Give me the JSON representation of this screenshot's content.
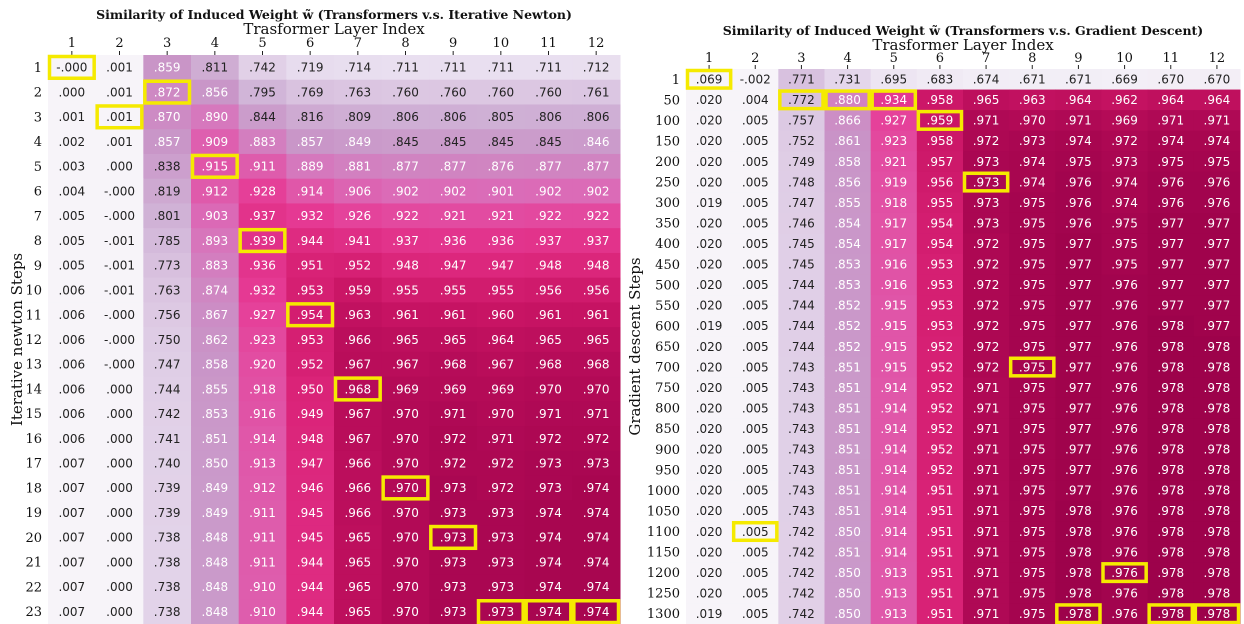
{
  "chart_data": [
    {
      "type": "heatmap",
      "title": "Similarity of Induced Weight w̃ (Transformers v.s. Iterative Newton)",
      "xlabel": "Trasformer Layer Index",
      "ylabel": "Iterative newton Steps",
      "x": [
        "1",
        "2",
        "3",
        "4",
        "5",
        "6",
        "7",
        "8",
        "9",
        "10",
        "11",
        "12"
      ],
      "y": [
        "1",
        "2",
        "3",
        "4",
        "5",
        "6",
        "7",
        "8",
        "9",
        "10",
        "11",
        "12",
        "13",
        "14",
        "15",
        "16",
        "17",
        "18",
        "19",
        "20",
        "21",
        "22",
        "23"
      ],
      "values": [
        [
          "-.000",
          ".001",
          ".859",
          ".811",
          ".742",
          ".719",
          ".714",
          ".711",
          ".711",
          ".711",
          ".711",
          ".712"
        ],
        [
          ".000",
          ".001",
          ".872",
          ".856",
          ".795",
          ".769",
          ".763",
          ".760",
          ".760",
          ".760",
          ".760",
          ".761"
        ],
        [
          ".001",
          ".001",
          ".870",
          ".890",
          ".844",
          ".816",
          ".809",
          ".806",
          ".806",
          ".805",
          ".806",
          ".806"
        ],
        [
          ".002",
          ".001",
          ".857",
          ".909",
          ".883",
          ".857",
          ".849",
          ".845",
          ".845",
          ".845",
          ".845",
          ".846"
        ],
        [
          ".003",
          ".000",
          ".838",
          ".915",
          ".911",
          ".889",
          ".881",
          ".877",
          ".877",
          ".876",
          ".877",
          ".877"
        ],
        [
          ".004",
          "-.000",
          ".819",
          ".912",
          ".928",
          ".914",
          ".906",
          ".902",
          ".902",
          ".901",
          ".902",
          ".902"
        ],
        [
          ".005",
          "-.000",
          ".801",
          ".903",
          ".937",
          ".932",
          ".926",
          ".922",
          ".921",
          ".921",
          ".922",
          ".922"
        ],
        [
          ".005",
          "-.001",
          ".785",
          ".893",
          ".939",
          ".944",
          ".941",
          ".937",
          ".936",
          ".936",
          ".937",
          ".937"
        ],
        [
          ".005",
          "-.001",
          ".773",
          ".883",
          ".936",
          ".951",
          ".952",
          ".948",
          ".947",
          ".947",
          ".948",
          ".948"
        ],
        [
          ".006",
          "-.001",
          ".763",
          ".874",
          ".932",
          ".953",
          ".959",
          ".955",
          ".955",
          ".955",
          ".956",
          ".956"
        ],
        [
          ".006",
          "-.000",
          ".756",
          ".867",
          ".927",
          ".954",
          ".963",
          ".961",
          ".961",
          ".960",
          ".961",
          ".961"
        ],
        [
          ".006",
          "-.000",
          ".750",
          ".862",
          ".923",
          ".953",
          ".966",
          ".965",
          ".965",
          ".964",
          ".965",
          ".965"
        ],
        [
          ".006",
          "-.000",
          ".747",
          ".858",
          ".920",
          ".952",
          ".967",
          ".967",
          ".968",
          ".967",
          ".968",
          ".968"
        ],
        [
          ".006",
          ".000",
          ".744",
          ".855",
          ".918",
          ".950",
          ".968",
          ".969",
          ".969",
          ".969",
          ".970",
          ".970"
        ],
        [
          ".006",
          ".000",
          ".742",
          ".853",
          ".916",
          ".949",
          ".967",
          ".970",
          ".971",
          ".970",
          ".971",
          ".971"
        ],
        [
          ".006",
          ".000",
          ".741",
          ".851",
          ".914",
          ".948",
          ".967",
          ".970",
          ".972",
          ".971",
          ".972",
          ".972"
        ],
        [
          ".007",
          ".000",
          ".740",
          ".850",
          ".913",
          ".947",
          ".966",
          ".970",
          ".972",
          ".972",
          ".973",
          ".973"
        ],
        [
          ".007",
          ".000",
          ".739",
          ".849",
          ".912",
          ".946",
          ".966",
          ".970",
          ".973",
          ".972",
          ".973",
          ".974"
        ],
        [
          ".007",
          ".000",
          ".739",
          ".849",
          ".911",
          ".945",
          ".966",
          ".970",
          ".973",
          ".973",
          ".974",
          ".974"
        ],
        [
          ".007",
          ".000",
          ".738",
          ".848",
          ".911",
          ".945",
          ".965",
          ".970",
          ".973",
          ".973",
          ".974",
          ".974"
        ],
        [
          ".007",
          ".000",
          ".738",
          ".848",
          ".911",
          ".944",
          ".965",
          ".970",
          ".973",
          ".973",
          ".974",
          ".974"
        ],
        [
          ".007",
          ".000",
          ".738",
          ".848",
          ".910",
          ".944",
          ".965",
          ".970",
          ".973",
          ".973",
          ".974",
          ".974"
        ],
        [
          ".007",
          ".000",
          ".738",
          ".848",
          ".910",
          ".944",
          ".965",
          ".970",
          ".973",
          ".973",
          ".974",
          ".974"
        ]
      ],
      "highlighted": [
        [
          0,
          0
        ],
        [
          1,
          2
        ],
        [
          2,
          1
        ],
        [
          3,
          4
        ],
        [
          4,
          7
        ],
        [
          5,
          10
        ],
        [
          6,
          13
        ],
        [
          7,
          17
        ],
        [
          8,
          19
        ],
        [
          9,
          22
        ],
        [
          10,
          22
        ],
        [
          11,
          22
        ]
      ],
      "highlight_color": "#f5ea00"
    },
    {
      "type": "heatmap",
      "title": "Similarity of Induced Weight w̃ (Transformers v.s. Gradient Descent)",
      "xlabel": "Trasformer Layer Index",
      "ylabel": "Gradient descent Steps",
      "x": [
        "1",
        "2",
        "3",
        "4",
        "5",
        "6",
        "7",
        "8",
        "9",
        "10",
        "11",
        "12"
      ],
      "y": [
        "1",
        "50",
        "100",
        "150",
        "200",
        "250",
        "300",
        "350",
        "400",
        "450",
        "500",
        "550",
        "600",
        "650",
        "700",
        "750",
        "800",
        "850",
        "900",
        "950",
        "1000",
        "1050",
        "1100",
        "1150",
        "1200",
        "1250",
        "1300"
      ],
      "values": [
        [
          ".069",
          "-.002",
          ".771",
          ".731",
          ".695",
          ".683",
          ".674",
          ".671",
          ".671",
          ".669",
          ".670",
          ".670"
        ],
        [
          ".020",
          ".004",
          ".772",
          ".880",
          ".934",
          ".958",
          ".965",
          ".963",
          ".964",
          ".962",
          ".964",
          ".964"
        ],
        [
          ".020",
          ".005",
          ".757",
          ".866",
          ".927",
          ".959",
          ".971",
          ".970",
          ".971",
          ".969",
          ".971",
          ".971"
        ],
        [
          ".020",
          ".005",
          ".752",
          ".861",
          ".923",
          ".958",
          ".972",
          ".973",
          ".974",
          ".972",
          ".974",
          ".974"
        ],
        [
          ".020",
          ".005",
          ".749",
          ".858",
          ".921",
          ".957",
          ".973",
          ".974",
          ".975",
          ".973",
          ".975",
          ".975"
        ],
        [
          ".020",
          ".005",
          ".748",
          ".856",
          ".919",
          ".956",
          ".973",
          ".974",
          ".976",
          ".974",
          ".976",
          ".976"
        ],
        [
          ".019",
          ".005",
          ".747",
          ".855",
          ".918",
          ".955",
          ".973",
          ".975",
          ".976",
          ".974",
          ".976",
          ".976"
        ],
        [
          ".020",
          ".005",
          ".746",
          ".854",
          ".917",
          ".954",
          ".973",
          ".975",
          ".976",
          ".975",
          ".977",
          ".977"
        ],
        [
          ".020",
          ".005",
          ".745",
          ".854",
          ".917",
          ".954",
          ".972",
          ".975",
          ".977",
          ".975",
          ".977",
          ".977"
        ],
        [
          ".020",
          ".005",
          ".745",
          ".853",
          ".916",
          ".953",
          ".972",
          ".975",
          ".977",
          ".975",
          ".977",
          ".977"
        ],
        [
          ".020",
          ".005",
          ".744",
          ".853",
          ".916",
          ".953",
          ".972",
          ".975",
          ".977",
          ".976",
          ".977",
          ".977"
        ],
        [
          ".020",
          ".005",
          ".744",
          ".852",
          ".915",
          ".953",
          ".972",
          ".975",
          ".977",
          ".976",
          ".977",
          ".977"
        ],
        [
          ".019",
          ".005",
          ".744",
          ".852",
          ".915",
          ".953",
          ".972",
          ".975",
          ".977",
          ".976",
          ".978",
          ".977"
        ],
        [
          ".020",
          ".005",
          ".744",
          ".852",
          ".915",
          ".952",
          ".972",
          ".975",
          ".977",
          ".976",
          ".978",
          ".978"
        ],
        [
          ".020",
          ".005",
          ".743",
          ".851",
          ".915",
          ".952",
          ".972",
          ".975",
          ".977",
          ".976",
          ".978",
          ".978"
        ],
        [
          ".020",
          ".005",
          ".743",
          ".851",
          ".914",
          ".952",
          ".971",
          ".975",
          ".977",
          ".976",
          ".978",
          ".978"
        ],
        [
          ".020",
          ".005",
          ".743",
          ".851",
          ".914",
          ".952",
          ".971",
          ".975",
          ".977",
          ".976",
          ".978",
          ".978"
        ],
        [
          ".020",
          ".005",
          ".743",
          ".851",
          ".914",
          ".952",
          ".971",
          ".975",
          ".977",
          ".976",
          ".978",
          ".978"
        ],
        [
          ".020",
          ".005",
          ".743",
          ".851",
          ".914",
          ".952",
          ".971",
          ".975",
          ".977",
          ".976",
          ".978",
          ".978"
        ],
        [
          ".020",
          ".005",
          ".743",
          ".851",
          ".914",
          ".952",
          ".971",
          ".975",
          ".977",
          ".976",
          ".978",
          ".978"
        ],
        [
          ".020",
          ".005",
          ".743",
          ".851",
          ".914",
          ".951",
          ".971",
          ".975",
          ".977",
          ".976",
          ".978",
          ".978"
        ],
        [
          ".020",
          ".005",
          ".743",
          ".851",
          ".914",
          ".951",
          ".971",
          ".975",
          ".978",
          ".976",
          ".978",
          ".978"
        ],
        [
          ".020",
          ".005",
          ".742",
          ".850",
          ".914",
          ".951",
          ".971",
          ".975",
          ".978",
          ".976",
          ".978",
          ".978"
        ],
        [
          ".020",
          ".005",
          ".742",
          ".851",
          ".914",
          ".951",
          ".971",
          ".975",
          ".978",
          ".976",
          ".978",
          ".978"
        ],
        [
          ".020",
          ".005",
          ".742",
          ".850",
          ".913",
          ".951",
          ".971",
          ".975",
          ".978",
          ".976",
          ".978",
          ".978"
        ],
        [
          ".020",
          ".005",
          ".742",
          ".850",
          ".913",
          ".951",
          ".971",
          ".975",
          ".978",
          ".976",
          ".978",
          ".978"
        ],
        [
          ".019",
          ".005",
          ".742",
          ".850",
          ".913",
          ".951",
          ".971",
          ".975",
          ".978",
          ".976",
          ".978",
          ".978"
        ]
      ],
      "highlighted": [
        [
          0,
          0
        ],
        [
          1,
          22
        ],
        [
          2,
          1
        ],
        [
          3,
          1
        ],
        [
          4,
          1
        ],
        [
          5,
          2
        ],
        [
          6,
          5
        ],
        [
          7,
          14
        ],
        [
          8,
          26
        ],
        [
          9,
          24
        ],
        [
          10,
          26
        ],
        [
          11,
          26
        ]
      ],
      "highlight_color": "#f5ea00"
    }
  ]
}
